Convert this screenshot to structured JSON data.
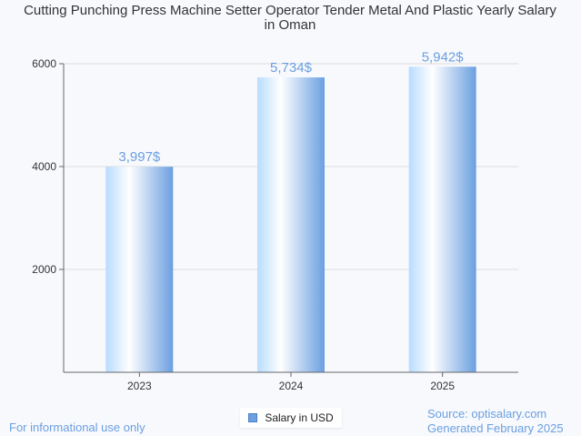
{
  "chart_data": {
    "type": "bar",
    "title_lines": [
      "Cutting Punching Press Machine Setter Operator Tender Metal And Plastic Yearly Salary",
      "in Oman"
    ],
    "categories": [
      "2023",
      "2024",
      "2025"
    ],
    "series": [
      {
        "name": "Salary in USD",
        "values": [
          3997,
          5734,
          5942
        ],
        "value_labels": [
          "3,997$",
          "5,734$",
          "5,942$"
        ]
      }
    ],
    "yticks": [
      "2000",
      "4000",
      "6000"
    ],
    "ylim": [
      0,
      6000
    ],
    "grid": true,
    "legend_position": "bottom",
    "bar_color": "#6a9fe0"
  },
  "footer": {
    "disclaimer": "For informational use only",
    "source": "Source: optisalary.com",
    "generated": "Generated February 2025"
  }
}
